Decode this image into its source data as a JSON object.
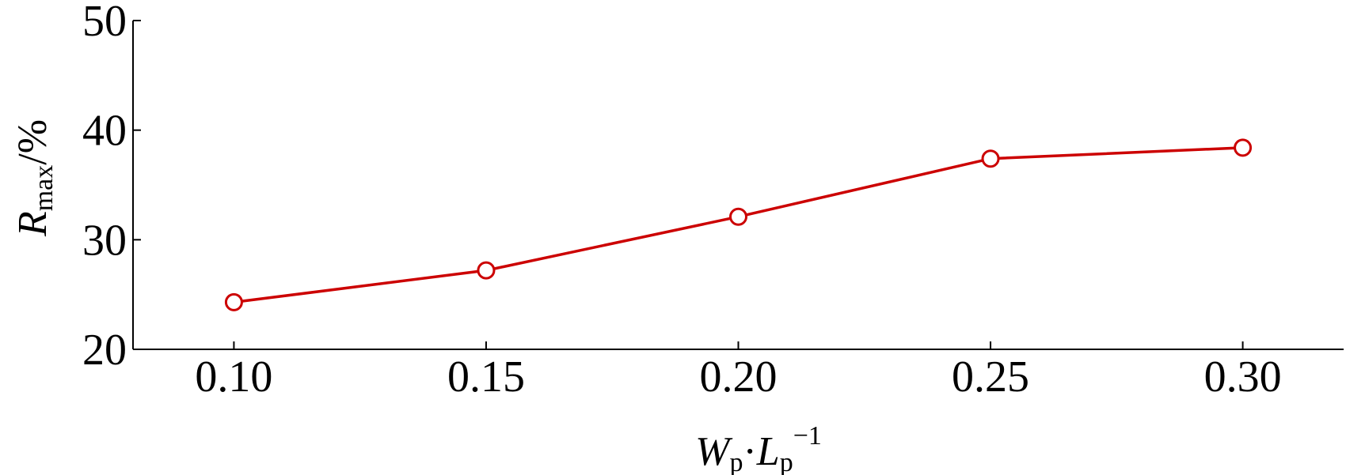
{
  "chart_data": {
    "type": "line",
    "x": [
      0.1,
      0.15,
      0.2,
      0.25,
      0.3
    ],
    "x_tick_labels": [
      "0.10",
      "0.15",
      "0.20",
      "0.25",
      "0.30"
    ],
    "series": [
      {
        "values": [
          24.3,
          27.2,
          32.1,
          37.4,
          38.4
        ],
        "color": "#cc0000",
        "marker": "open-circle"
      }
    ],
    "y_ticks": [
      20,
      30,
      40,
      50
    ],
    "y_tick_labels": [
      "20",
      "30",
      "40",
      "50"
    ],
    "xlim": [
      0.08,
      0.32
    ],
    "ylim": [
      20,
      50
    ],
    "grid": false,
    "legend": "none",
    "xlabel": {
      "w": "W",
      "w_sub": "p",
      "dot": "·",
      "l": "L",
      "l_sub": "p",
      "l_sup": "−1"
    },
    "ylabel": {
      "r": "R",
      "r_sub": "max",
      "unit": "/%"
    }
  }
}
